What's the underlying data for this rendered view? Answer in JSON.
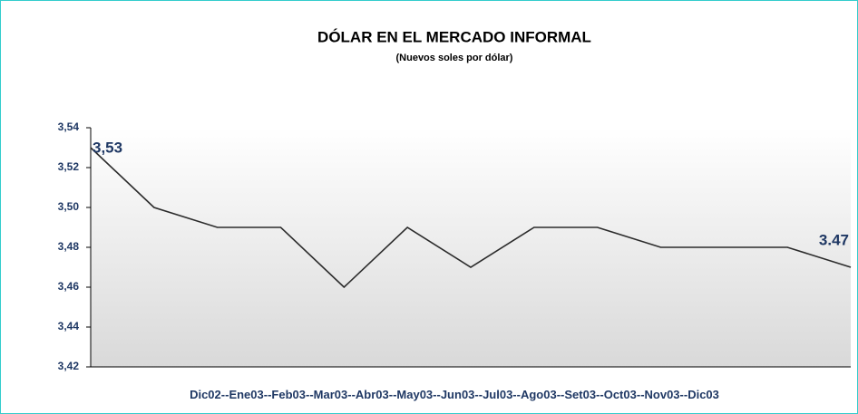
{
  "chart_data": {
    "type": "line",
    "title": "DÓLAR EN EL MERCADO INFORMAL",
    "subtitle": "(Nuevos soles por dólar)",
    "categories": [
      "Dic02-",
      "-Ene03-",
      "-Feb03-",
      "-Mar03-",
      "-Abr03-",
      "-May03-",
      "-Jun03-",
      "-Jul03-",
      "-Ago03-",
      "-Set03-",
      "-Oct03-",
      "-Nov03-",
      "-Dic03"
    ],
    "values": [
      3.53,
      3.5,
      3.49,
      3.49,
      3.46,
      3.49,
      3.47,
      3.49,
      3.49,
      3.48,
      3.48,
      3.48,
      3.47
    ],
    "value_labels": [
      "3,53",
      null,
      null,
      null,
      null,
      null,
      null,
      null,
      null,
      null,
      null,
      null,
      "3.47"
    ],
    "color": "#2b2b2b",
    "ylim": [
      3.42,
      3.54
    ],
    "yticks": [
      {
        "value": 3.42,
        "label": "3,42"
      },
      {
        "value": 3.44,
        "label": "3,44"
      },
      {
        "value": 3.46,
        "label": "3,46"
      },
      {
        "value": 3.48,
        "label": "3,48"
      },
      {
        "value": 3.5,
        "label": "3,50"
      },
      {
        "value": 3.52,
        "label": "3,52"
      },
      {
        "value": 3.54,
        "label": "3,54"
      }
    ],
    "grid": false
  }
}
